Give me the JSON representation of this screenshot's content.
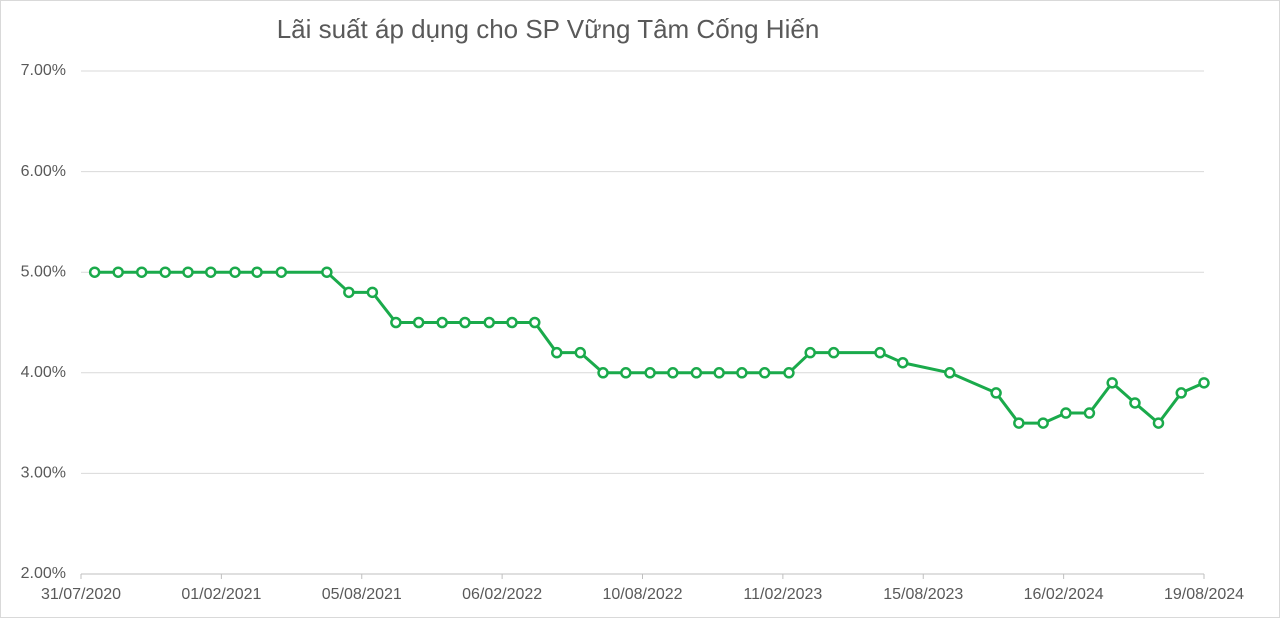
{
  "chart_data": {
    "type": "line",
    "title": "Lãi suất áp dụng cho SP Vững Tâm Cống Hiến",
    "x": [
      "18/08/2020",
      "18/09/2020",
      "19/10/2020",
      "19/11/2020",
      "19/12/2020",
      "18/01/2021",
      "19/02/2021",
      "20/03/2021",
      "21/04/2021",
      "20/06/2021",
      "19/07/2021",
      "19/08/2021",
      "19/09/2021",
      "19/10/2021",
      "19/11/2021",
      "19/12/2021",
      "20/01/2022",
      "19/02/2022",
      "21/03/2022",
      "19/04/2022",
      "20/05/2022",
      "19/06/2022",
      "19/07/2022",
      "20/08/2022",
      "19/09/2022",
      "20/10/2022",
      "19/11/2022",
      "19/12/2022",
      "18/01/2023",
      "19/02/2023",
      "19/03/2023",
      "19/04/2023",
      "19/06/2023",
      "19/07/2023",
      "19/09/2023",
      "19/11/2023",
      "19/12/2023",
      "20/01/2024",
      "19/02/2024",
      "21/03/2024",
      "20/04/2024",
      "20/05/2024",
      "20/06/2024",
      "20/07/2024",
      "19/08/2024"
    ],
    "series": [
      {
        "color": "#1aaa4b",
        "values": [
          5.0,
          5.0,
          5.0,
          5.0,
          5.0,
          5.0,
          5.0,
          5.0,
          5.0,
          5.0,
          4.8,
          4.8,
          4.5,
          4.5,
          4.5,
          4.5,
          4.5,
          4.5,
          4.5,
          4.2,
          4.2,
          4.0,
          4.0,
          4.0,
          4.0,
          4.0,
          4.0,
          4.0,
          4.0,
          4.0,
          4.2,
          4.2,
          4.2,
          4.1,
          4.0,
          3.8,
          3.5,
          3.5,
          3.6,
          3.6,
          3.9,
          3.7,
          3.5,
          3.8,
          3.9
        ]
      }
    ],
    "xlim": [
      "31/07/2020",
      "19/08/2024"
    ],
    "xticks": [
      "31/07/2020",
      "01/02/2021",
      "05/08/2021",
      "06/02/2022",
      "10/08/2022",
      "11/02/2023",
      "15/08/2023",
      "16/02/2024",
      "19/08/2024"
    ],
    "ylim": [
      2,
      7
    ],
    "yticks": [
      {
        "value": 2,
        "label": "2.00%"
      },
      {
        "value": 3,
        "label": "3.00%"
      },
      {
        "value": 4,
        "label": "4.00%"
      },
      {
        "value": 5,
        "label": "5.00%"
      },
      {
        "value": 6,
        "label": "6.00%"
      },
      {
        "value": 7,
        "label": "7.00%"
      }
    ],
    "grid": true
  }
}
